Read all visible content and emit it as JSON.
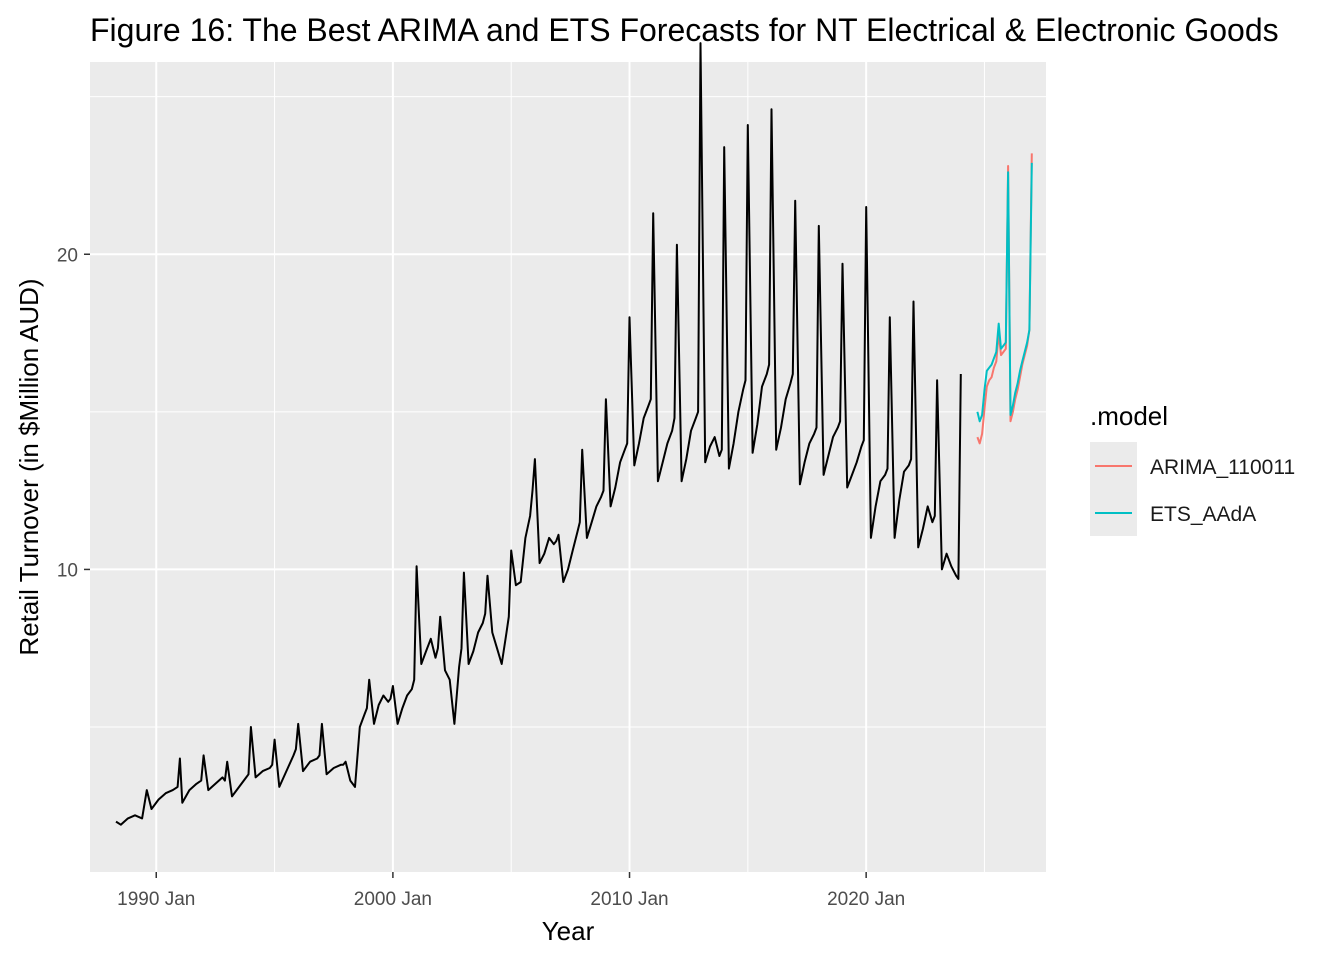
{
  "chart_data": {
    "type": "line",
    "title": "Figure 16: The Best ARIMA and ETS Forecasts for NT Electrical & Electronic Goods",
    "xlabel": "Year",
    "ylabel": "Retail Turnover (in $Million AUD)",
    "xlim": [
      1987.2,
      2027.6
    ],
    "ylim": [
      0.4,
      26.1
    ],
    "x_ticks": [
      {
        "label": "1990 Jan",
        "value": 1990
      },
      {
        "label": "2000 Jan",
        "value": 2000
      },
      {
        "label": "2010 Jan",
        "value": 2010
      },
      {
        "label": "2020 Jan",
        "value": 2020
      }
    ],
    "y_ticks": [
      {
        "label": "10",
        "value": 10
      },
      {
        "label": "20",
        "value": 20
      }
    ],
    "grid": true,
    "legend": {
      "title": ".model",
      "position": "right"
    },
    "series": [
      {
        "name": "",
        "color": "#000000",
        "points": [
          [
            1988.3,
            2.0
          ],
          [
            1988.5,
            1.9
          ],
          [
            1988.8,
            2.1
          ],
          [
            1989.1,
            2.2
          ],
          [
            1989.4,
            2.1
          ],
          [
            1989.6,
            3.0
          ],
          [
            1989.8,
            2.4
          ],
          [
            1990.1,
            2.7
          ],
          [
            1990.4,
            2.9
          ],
          [
            1990.7,
            3.0
          ],
          [
            1990.9,
            3.1
          ],
          [
            1991.0,
            4.0
          ],
          [
            1991.1,
            2.6
          ],
          [
            1991.4,
            3.0
          ],
          [
            1991.7,
            3.2
          ],
          [
            1991.9,
            3.3
          ],
          [
            1992.0,
            4.1
          ],
          [
            1992.2,
            3.0
          ],
          [
            1992.5,
            3.2
          ],
          [
            1992.8,
            3.4
          ],
          [
            1992.9,
            3.3
          ],
          [
            1993.0,
            3.9
          ],
          [
            1993.2,
            2.8
          ],
          [
            1993.5,
            3.1
          ],
          [
            1993.8,
            3.4
          ],
          [
            1993.9,
            3.5
          ],
          [
            1994.0,
            5.0
          ],
          [
            1994.2,
            3.4
          ],
          [
            1994.5,
            3.6
          ],
          [
            1994.8,
            3.7
          ],
          [
            1994.9,
            3.8
          ],
          [
            1995.0,
            4.6
          ],
          [
            1995.2,
            3.1
          ],
          [
            1995.5,
            3.6
          ],
          [
            1995.8,
            4.1
          ],
          [
            1995.9,
            4.3
          ],
          [
            1996.0,
            5.1
          ],
          [
            1996.2,
            3.6
          ],
          [
            1996.5,
            3.9
          ],
          [
            1996.8,
            4.0
          ],
          [
            1996.9,
            4.1
          ],
          [
            1997.0,
            5.1
          ],
          [
            1997.2,
            3.5
          ],
          [
            1997.5,
            3.7
          ],
          [
            1997.8,
            3.8
          ],
          [
            1997.9,
            3.8
          ],
          [
            1998.0,
            3.9
          ],
          [
            1998.2,
            3.3
          ],
          [
            1998.4,
            3.1
          ],
          [
            1998.6,
            5.0
          ],
          [
            1998.8,
            5.4
          ],
          [
            1998.9,
            5.6
          ],
          [
            1999.0,
            6.5
          ],
          [
            1999.2,
            5.1
          ],
          [
            1999.4,
            5.7
          ],
          [
            1999.6,
            6.0
          ],
          [
            1999.8,
            5.8
          ],
          [
            1999.9,
            5.9
          ],
          [
            2000.0,
            6.3
          ],
          [
            2000.2,
            5.1
          ],
          [
            2000.4,
            5.6
          ],
          [
            2000.6,
            6.0
          ],
          [
            2000.8,
            6.2
          ],
          [
            2000.9,
            6.5
          ],
          [
            2001.0,
            10.1
          ],
          [
            2001.2,
            7.0
          ],
          [
            2001.4,
            7.4
          ],
          [
            2001.6,
            7.8
          ],
          [
            2001.8,
            7.2
          ],
          [
            2001.9,
            7.5
          ],
          [
            2002.0,
            8.5
          ],
          [
            2002.2,
            6.8
          ],
          [
            2002.4,
            6.5
          ],
          [
            2002.6,
            5.1
          ],
          [
            2002.8,
            6.9
          ],
          [
            2002.9,
            7.5
          ],
          [
            2003.0,
            9.9
          ],
          [
            2003.2,
            7.0
          ],
          [
            2003.4,
            7.4
          ],
          [
            2003.6,
            8.0
          ],
          [
            2003.8,
            8.3
          ],
          [
            2003.9,
            8.6
          ],
          [
            2004.0,
            9.8
          ],
          [
            2004.2,
            8.0
          ],
          [
            2004.4,
            7.5
          ],
          [
            2004.6,
            7.0
          ],
          [
            2004.8,
            8.0
          ],
          [
            2004.9,
            8.5
          ],
          [
            2005.0,
            10.6
          ],
          [
            2005.2,
            9.5
          ],
          [
            2005.4,
            9.6
          ],
          [
            2005.6,
            11.0
          ],
          [
            2005.8,
            11.7
          ],
          [
            2005.9,
            12.5
          ],
          [
            2006.0,
            13.5
          ],
          [
            2006.2,
            10.2
          ],
          [
            2006.4,
            10.5
          ],
          [
            2006.6,
            11.0
          ],
          [
            2006.8,
            10.8
          ],
          [
            2006.9,
            10.9
          ],
          [
            2007.0,
            11.1
          ],
          [
            2007.2,
            9.6
          ],
          [
            2007.4,
            10.0
          ],
          [
            2007.6,
            10.6
          ],
          [
            2007.8,
            11.2
          ],
          [
            2007.9,
            11.5
          ],
          [
            2008.0,
            13.8
          ],
          [
            2008.2,
            11.0
          ],
          [
            2008.4,
            11.5
          ],
          [
            2008.6,
            12.0
          ],
          [
            2008.8,
            12.3
          ],
          [
            2008.9,
            12.5
          ],
          [
            2009.0,
            15.4
          ],
          [
            2009.2,
            12.0
          ],
          [
            2009.4,
            12.6
          ],
          [
            2009.6,
            13.4
          ],
          [
            2009.8,
            13.8
          ],
          [
            2009.9,
            14.0
          ],
          [
            2010.0,
            18.0
          ],
          [
            2010.2,
            13.3
          ],
          [
            2010.4,
            14.0
          ],
          [
            2010.6,
            14.8
          ],
          [
            2010.8,
            15.2
          ],
          [
            2010.9,
            15.4
          ],
          [
            2011.0,
            21.3
          ],
          [
            2011.2,
            12.8
          ],
          [
            2011.4,
            13.4
          ],
          [
            2011.6,
            14.0
          ],
          [
            2011.8,
            14.4
          ],
          [
            2011.9,
            14.8
          ],
          [
            2012.0,
            20.3
          ],
          [
            2012.2,
            12.8
          ],
          [
            2012.4,
            13.5
          ],
          [
            2012.6,
            14.4
          ],
          [
            2012.8,
            14.8
          ],
          [
            2012.9,
            15.0
          ],
          [
            2013.0,
            26.7
          ],
          [
            2013.2,
            13.4
          ],
          [
            2013.4,
            13.9
          ],
          [
            2013.6,
            14.2
          ],
          [
            2013.8,
            13.6
          ],
          [
            2013.9,
            13.8
          ],
          [
            2014.0,
            23.4
          ],
          [
            2014.2,
            13.2
          ],
          [
            2014.4,
            14.0
          ],
          [
            2014.6,
            15.0
          ],
          [
            2014.8,
            15.7
          ],
          [
            2014.9,
            16.0
          ],
          [
            2015.0,
            24.1
          ],
          [
            2015.2,
            13.7
          ],
          [
            2015.4,
            14.6
          ],
          [
            2015.6,
            15.8
          ],
          [
            2015.8,
            16.2
          ],
          [
            2015.9,
            16.5
          ],
          [
            2016.0,
            24.6
          ],
          [
            2016.2,
            13.8
          ],
          [
            2016.4,
            14.5
          ],
          [
            2016.6,
            15.4
          ],
          [
            2016.8,
            15.9
          ],
          [
            2016.9,
            16.2
          ],
          [
            2017.0,
            21.7
          ],
          [
            2017.2,
            12.7
          ],
          [
            2017.4,
            13.4
          ],
          [
            2017.6,
            14.0
          ],
          [
            2017.8,
            14.3
          ],
          [
            2017.9,
            14.5
          ],
          [
            2018.0,
            20.9
          ],
          [
            2018.2,
            13.0
          ],
          [
            2018.4,
            13.6
          ],
          [
            2018.6,
            14.2
          ],
          [
            2018.8,
            14.5
          ],
          [
            2018.9,
            14.7
          ],
          [
            2019.0,
            19.7
          ],
          [
            2019.2,
            12.6
          ],
          [
            2019.4,
            13.0
          ],
          [
            2019.6,
            13.4
          ],
          [
            2019.8,
            13.9
          ],
          [
            2019.9,
            14.1
          ],
          [
            2020.0,
            21.5
          ],
          [
            2020.2,
            11.0
          ],
          [
            2020.4,
            12.0
          ],
          [
            2020.6,
            12.8
          ],
          [
            2020.8,
            13.0
          ],
          [
            2020.9,
            13.2
          ],
          [
            2021.0,
            18.0
          ],
          [
            2021.2,
            11.0
          ],
          [
            2021.4,
            12.2
          ],
          [
            2021.6,
            13.1
          ],
          [
            2021.8,
            13.3
          ],
          [
            2021.9,
            13.5
          ],
          [
            2022.0,
            18.5
          ],
          [
            2022.2,
            10.7
          ],
          [
            2022.4,
            11.3
          ],
          [
            2022.6,
            12.0
          ],
          [
            2022.8,
            11.5
          ],
          [
            2022.9,
            11.7
          ],
          [
            2023.0,
            16.0
          ],
          [
            2023.2,
            10.0
          ],
          [
            2023.4,
            10.5
          ],
          [
            2023.6,
            10.1
          ],
          [
            2023.8,
            9.8
          ],
          [
            2023.9,
            9.7
          ],
          [
            2024.0,
            16.2
          ]
        ]
      },
      {
        "name": "ARIMA_110011",
        "color": "#F8766D",
        "points": [
          [
            2024.7,
            14.2
          ],
          [
            2024.8,
            14.0
          ],
          [
            2024.9,
            14.3
          ],
          [
            2025.0,
            15.1
          ],
          [
            2025.1,
            15.8
          ],
          [
            2025.2,
            16.0
          ],
          [
            2025.3,
            16.1
          ],
          [
            2025.4,
            16.4
          ],
          [
            2025.5,
            16.6
          ],
          [
            2025.6,
            17.5
          ],
          [
            2025.7,
            16.8
          ],
          [
            2025.8,
            16.9
          ],
          [
            2025.9,
            17.0
          ],
          [
            2026.0,
            22.8
          ],
          [
            2026.1,
            14.7
          ],
          [
            2026.2,
            15.0
          ],
          [
            2026.3,
            15.4
          ],
          [
            2026.4,
            15.7
          ],
          [
            2026.5,
            16.1
          ],
          [
            2026.6,
            16.5
          ],
          [
            2026.7,
            16.8
          ],
          [
            2026.8,
            17.1
          ],
          [
            2026.9,
            17.6
          ],
          [
            2027.0,
            23.2
          ]
        ]
      },
      {
        "name": "ETS_AAdA",
        "color": "#00BFC4",
        "points": [
          [
            2024.7,
            15.0
          ],
          [
            2024.8,
            14.7
          ],
          [
            2024.9,
            14.9
          ],
          [
            2025.0,
            15.7
          ],
          [
            2025.1,
            16.3
          ],
          [
            2025.2,
            16.4
          ],
          [
            2025.3,
            16.5
          ],
          [
            2025.4,
            16.7
          ],
          [
            2025.5,
            16.9
          ],
          [
            2025.6,
            17.8
          ],
          [
            2025.7,
            17.0
          ],
          [
            2025.8,
            17.1
          ],
          [
            2025.9,
            17.2
          ],
          [
            2026.0,
            22.6
          ],
          [
            2026.1,
            14.9
          ],
          [
            2026.2,
            15.2
          ],
          [
            2026.3,
            15.6
          ],
          [
            2026.4,
            15.9
          ],
          [
            2026.5,
            16.3
          ],
          [
            2026.6,
            16.6
          ],
          [
            2026.7,
            16.9
          ],
          [
            2026.8,
            17.2
          ],
          [
            2026.9,
            17.6
          ],
          [
            2027.0,
            22.9
          ]
        ]
      }
    ]
  }
}
